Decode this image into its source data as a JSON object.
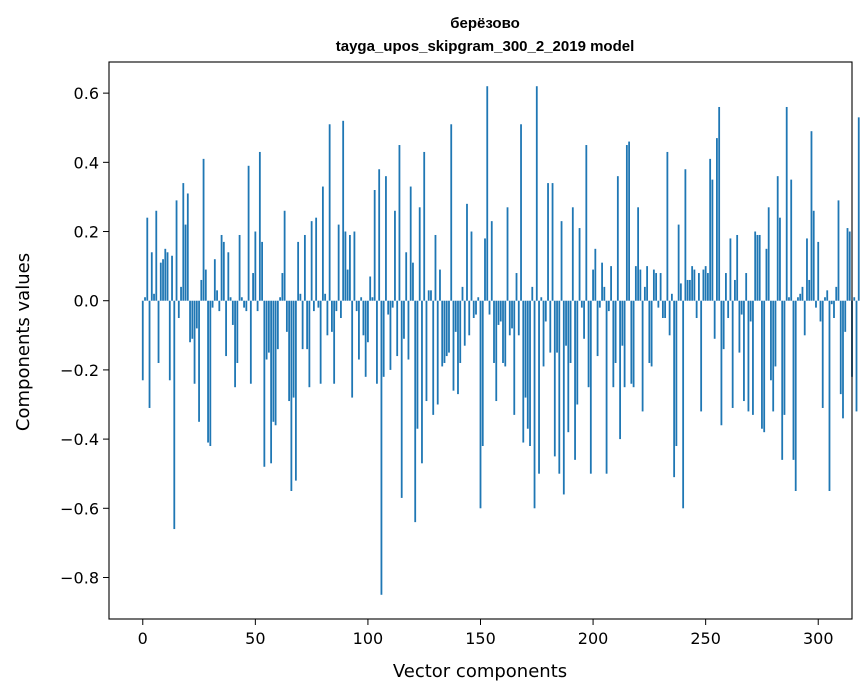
{
  "chart_data": {
    "type": "bar",
    "title": "берёзово",
    "subtitle": "tayga_upos_skipgram_300_2_2019 model",
    "xlabel": "Vector components",
    "ylabel": "Components values",
    "xlim": [
      -15,
      315
    ],
    "ylim": [
      -0.92,
      0.69
    ],
    "xticks": [
      0,
      50,
      100,
      150,
      200,
      250,
      300
    ],
    "xtick_labels": [
      "0",
      "50",
      "100",
      "150",
      "200",
      "250",
      "300"
    ],
    "yticks": [
      0.6,
      0.4,
      0.2,
      0.0,
      -0.2,
      -0.4,
      -0.6,
      -0.8
    ],
    "ytick_labels": [
      "0.6",
      "0.4",
      "0.2",
      "0.0",
      "−0.2",
      "−0.4",
      "−0.6",
      "−0.8"
    ],
    "color": "#1f77b4",
    "values": [
      -0.23,
      0.01,
      0.24,
      -0.31,
      0.14,
      0.02,
      0.26,
      -0.18,
      0.11,
      0.12,
      0.15,
      0.14,
      -0.23,
      0.13,
      -0.66,
      0.29,
      -0.05,
      0.04,
      0.34,
      0.22,
      0.31,
      -0.12,
      -0.11,
      -0.24,
      -0.08,
      -0.35,
      0.06,
      0.41,
      0.09,
      -0.41,
      -0.42,
      -0.02,
      0.12,
      0.03,
      -0.03,
      0.19,
      0.17,
      -0.16,
      0.14,
      0.01,
      -0.07,
      -0.25,
      -0.18,
      0.19,
      0.01,
      -0.02,
      -0.03,
      0.39,
      -0.24,
      0.08,
      0.2,
      -0.03,
      0.43,
      0.17,
      -0.48,
      -0.17,
      -0.15,
      -0.47,
      -0.35,
      -0.36,
      -0.14,
      0.01,
      0.08,
      0.26,
      -0.09,
      -0.29,
      -0.55,
      -0.28,
      -0.52,
      0.17,
      0.02,
      -0.14,
      0.19,
      -0.14,
      -0.25,
      0.23,
      -0.03,
      0.24,
      -0.02,
      -0.24,
      0.33,
      0.02,
      -0.1,
      0.51,
      -0.09,
      -0.24,
      -0.03,
      0.22,
      -0.05,
      0.52,
      0.2,
      0.09,
      0.19,
      -0.28,
      0.2,
      -0.03,
      -0.17,
      0.01,
      -0.1,
      -0.22,
      -0.12,
      0.07,
      0.01,
      0.32,
      -0.24,
      0.38,
      -0.85,
      -0.22,
      0.36,
      -0.04,
      -0.2,
      -0.02,
      0.26,
      -0.16,
      0.45,
      -0.57,
      -0.11,
      0.14,
      -0.17,
      0.33,
      0.11,
      -0.64,
      -0.37,
      0.27,
      -0.47,
      0.43,
      -0.29,
      0.03,
      0.03,
      -0.33,
      0.19,
      -0.3,
      0.09,
      -0.19,
      -0.18,
      -0.16,
      -0.15,
      0.51,
      -0.26,
      -0.09,
      -0.27,
      -0.18,
      0.04,
      -0.13,
      0.28,
      -0.1,
      0.2,
      -0.05,
      -0.04,
      0.01,
      -0.6,
      -0.42,
      0.18,
      0.62,
      -0.04,
      0.23,
      -0.18,
      -0.29,
      -0.07,
      -0.06,
      -0.18,
      -0.19,
      0.27,
      -0.1,
      -0.08,
      -0.33,
      0.08,
      -0.1,
      0.51,
      -0.41,
      -0.28,
      -0.37,
      -0.42,
      0.04,
      -0.6,
      0.62,
      -0.5,
      0.01,
      -0.19,
      -0.06,
      0.34,
      -0.15,
      0.34,
      -0.45,
      -0.15,
      -0.5,
      0.23,
      -0.56,
      -0.13,
      -0.38,
      -0.18,
      0.27,
      -0.46,
      -0.3,
      0.21,
      -0.02,
      -0.11,
      0.45,
      -0.25,
      -0.5,
      0.09,
      0.15,
      -0.16,
      -0.02,
      0.11,
      0.04,
      -0.5,
      -0.03,
      0.1,
      -0.25,
      -0.18,
      0.36,
      -0.4,
      -0.13,
      -0.25,
      0.45,
      0.46,
      -0.24,
      -0.25,
      0.1,
      0.27,
      0.09,
      -0.32,
      0.04,
      0.1,
      -0.18,
      -0.19,
      0.09,
      0.08,
      -0.02,
      0.08,
      -0.05,
      -0.05,
      0.43,
      -0.1,
      0.02,
      -0.51,
      -0.42,
      0.22,
      0.05,
      -0.6,
      0.38,
      0.06,
      0.06,
      0.1,
      0.09,
      -0.05,
      0.08,
      -0.32,
      0.09,
      0.1,
      0.08,
      0.41,
      0.35,
      -0.11,
      0.47,
      0.56,
      -0.36,
      -0.14,
      0.08,
      -0.05,
      0.18,
      -0.31,
      0.06,
      0.19,
      -0.15,
      -0.04,
      -0.29,
      0.08,
      -0.32,
      -0.06,
      -0.33,
      0.2,
      0.19,
      0.19,
      -0.37,
      -0.38,
      0.15,
      0.27,
      -0.23,
      -0.32,
      -0.19,
      0.36,
      0.24,
      -0.46,
      -0.33,
      0.56,
      0.01,
      0.35,
      -0.46,
      -0.55,
      0.01,
      0.02,
      0.04,
      -0.1,
      0.18,
      0.06,
      0.49,
      0.26,
      -0.02,
      0.17,
      -0.06,
      -0.31,
      0.01,
      0.03,
      -0.55,
      -0.01,
      -0.05,
      0.04,
      0.29,
      -0.27,
      -0.34,
      -0.09,
      0.21,
      0.2,
      -0.22,
      0.01,
      -0.32,
      0.53
    ]
  }
}
